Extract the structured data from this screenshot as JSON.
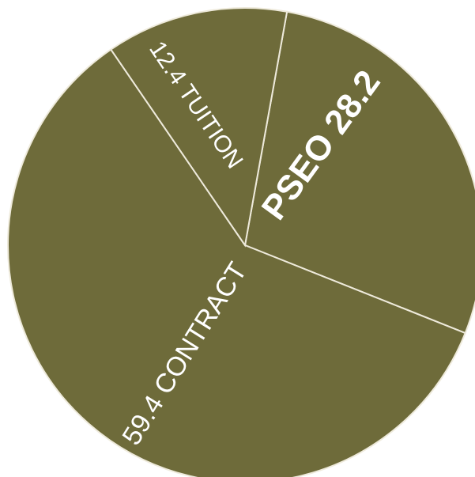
{
  "chart_data": {
    "type": "pie",
    "slices": [
      {
        "label": "PSEO",
        "value": 28.2,
        "text": "PSEO 28.2"
      },
      {
        "label": "CONTRACT",
        "value": 59.4,
        "text": "59.4 CONTRACT"
      },
      {
        "label": "TUITION",
        "value": 12.4,
        "text": "12.4 TUITION"
      }
    ],
    "colors": {
      "slice": "#6e6b3a",
      "separator": "#eeeadb",
      "label": "#ffffff"
    }
  }
}
